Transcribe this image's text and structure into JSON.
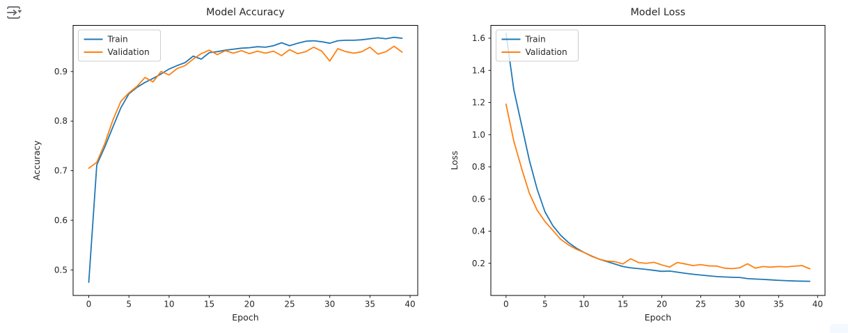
{
  "toolbar": {
    "output_menu_icon": "collapsed-cell-output-arrow"
  },
  "figure_background": "#ffffff",
  "text_color": "#262626",
  "spine_color": "#000000",
  "chart_data": [
    {
      "type": "line",
      "title": "Model Accuracy",
      "xlabel": "Epoch",
      "ylabel": "Accuracy",
      "grid": false,
      "legend": {
        "position": "upper-left",
        "entries": [
          "Train",
          "Validation"
        ]
      },
      "xlim": [
        -1.95,
        40.95
      ],
      "ylim": [
        0.4485,
        0.993
      ],
      "xticks": [
        0,
        5,
        10,
        15,
        20,
        25,
        30,
        35,
        40
      ],
      "yticks": [
        0.5,
        0.6,
        0.7,
        0.8,
        0.9
      ],
      "ytick_decimals": 1,
      "x": [
        0,
        1,
        2,
        3,
        4,
        5,
        6,
        7,
        8,
        9,
        10,
        11,
        12,
        13,
        14,
        15,
        16,
        17,
        18,
        19,
        20,
        21,
        22,
        23,
        24,
        25,
        26,
        27,
        28,
        29,
        30,
        31,
        32,
        33,
        34,
        35,
        36,
        37,
        38,
        39
      ],
      "series": [
        {
          "name": "Train",
          "color": "#1f77b4",
          "values": [
            0.475,
            0.712,
            0.748,
            0.788,
            0.827,
            0.855,
            0.868,
            0.878,
            0.886,
            0.895,
            0.905,
            0.912,
            0.918,
            0.931,
            0.925,
            0.938,
            0.94,
            0.943,
            0.945,
            0.947,
            0.948,
            0.95,
            0.949,
            0.952,
            0.958,
            0.952,
            0.957,
            0.961,
            0.962,
            0.96,
            0.957,
            0.962,
            0.963,
            0.963,
            0.964,
            0.966,
            0.968,
            0.966,
            0.969,
            0.967
          ]
        },
        {
          "name": "Validation",
          "color": "#ff7f0e",
          "values": [
            0.705,
            0.717,
            0.755,
            0.802,
            0.84,
            0.857,
            0.87,
            0.888,
            0.879,
            0.9,
            0.893,
            0.906,
            0.912,
            0.925,
            0.936,
            0.943,
            0.934,
            0.942,
            0.937,
            0.942,
            0.936,
            0.941,
            0.937,
            0.941,
            0.932,
            0.944,
            0.936,
            0.94,
            0.949,
            0.941,
            0.921,
            0.946,
            0.94,
            0.937,
            0.94,
            0.949,
            0.935,
            0.94,
            0.951,
            0.939
          ]
        }
      ]
    },
    {
      "type": "line",
      "title": "Model Loss",
      "xlabel": "Epoch",
      "ylabel": "Loss",
      "grid": false,
      "legend": {
        "position": "upper-left",
        "entries": [
          "Train",
          "Validation"
        ]
      },
      "xlim": [
        -1.95,
        40.95
      ],
      "ylim": [
        0.0,
        1.68
      ],
      "xticks": [
        0,
        5,
        10,
        15,
        20,
        25,
        30,
        35,
        40
      ],
      "yticks": [
        0.2,
        0.4,
        0.6,
        0.8,
        1.0,
        1.2,
        1.4,
        1.6
      ],
      "ytick_decimals": 1,
      "x": [
        0,
        1,
        2,
        3,
        4,
        5,
        6,
        7,
        8,
        9,
        10,
        11,
        12,
        13,
        14,
        15,
        16,
        17,
        18,
        19,
        20,
        21,
        22,
        23,
        24,
        25,
        26,
        27,
        28,
        29,
        30,
        31,
        32,
        33,
        34,
        35,
        36,
        37,
        38,
        39
      ],
      "series": [
        {
          "name": "Train",
          "color": "#1f77b4",
          "values": [
            1.63,
            1.28,
            1.06,
            0.84,
            0.66,
            0.52,
            0.435,
            0.375,
            0.33,
            0.295,
            0.268,
            0.245,
            0.225,
            0.21,
            0.195,
            0.18,
            0.172,
            0.167,
            0.162,
            0.156,
            0.15,
            0.152,
            0.145,
            0.138,
            0.132,
            0.127,
            0.122,
            0.118,
            0.115,
            0.113,
            0.112,
            0.105,
            0.102,
            0.1,
            0.097,
            0.094,
            0.092,
            0.09,
            0.089,
            0.088
          ]
        },
        {
          "name": "Validation",
          "color": "#ff7f0e",
          "values": [
            1.19,
            0.96,
            0.79,
            0.635,
            0.53,
            0.46,
            0.405,
            0.35,
            0.315,
            0.288,
            0.268,
            0.243,
            0.225,
            0.214,
            0.21,
            0.196,
            0.228,
            0.205,
            0.2,
            0.206,
            0.19,
            0.177,
            0.205,
            0.196,
            0.186,
            0.192,
            0.184,
            0.183,
            0.17,
            0.167,
            0.172,
            0.197,
            0.17,
            0.18,
            0.176,
            0.18,
            0.178,
            0.182,
            0.186,
            0.166
          ]
        }
      ]
    }
  ]
}
